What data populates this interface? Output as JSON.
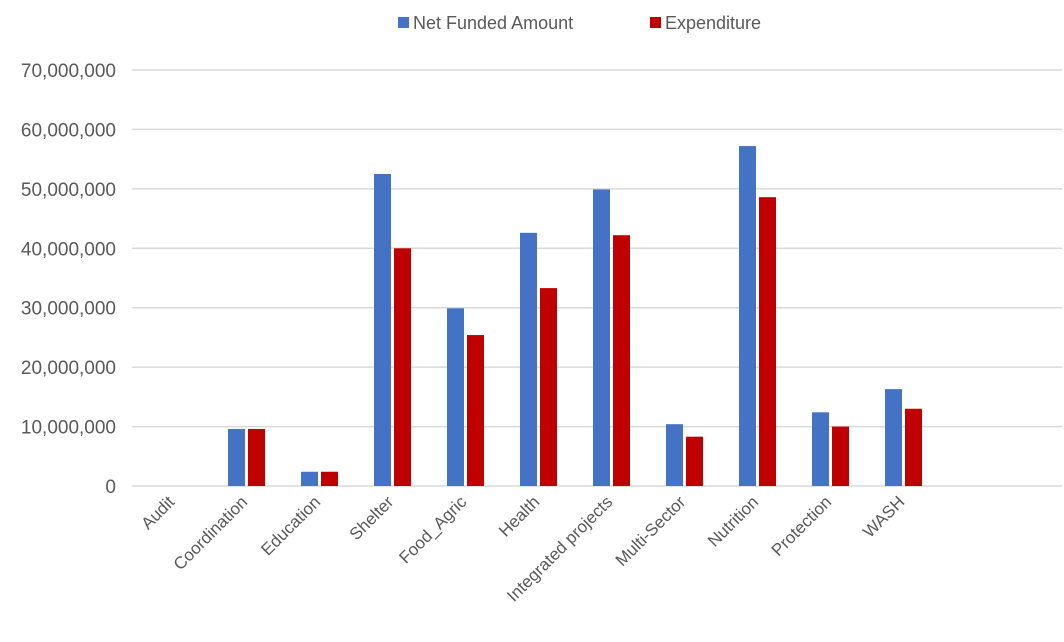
{
  "chart_data": {
    "type": "bar",
    "categories": [
      "Audit",
      "Coordination",
      "Education",
      "Shelter",
      "Food_Agric",
      "Health",
      "Integrated projects",
      "Multi-Sector",
      "Nutrition",
      "Protection",
      "WASH"
    ],
    "series": [
      {
        "name": "Net Funded Amount",
        "color": "#4472C4",
        "values": [
          0,
          9600000,
          2400000,
          52500000,
          29900000,
          42600000,
          49900000,
          10400000,
          57200000,
          12400000,
          16300000
        ]
      },
      {
        "name": "Expenditure",
        "color": "#C00000",
        "values": [
          0,
          9600000,
          2400000,
          40000000,
          25400000,
          33300000,
          42200000,
          8300000,
          48600000,
          10000000,
          13000000
        ]
      }
    ],
    "ylim": [
      0,
      70000000
    ],
    "yticks": [
      "0",
      "10,000,000",
      "20,000,000",
      "30,000,000",
      "40,000,000",
      "50,000,000",
      "60,000,000",
      "70,000,000"
    ],
    "grid": true,
    "legend_position": "top"
  }
}
